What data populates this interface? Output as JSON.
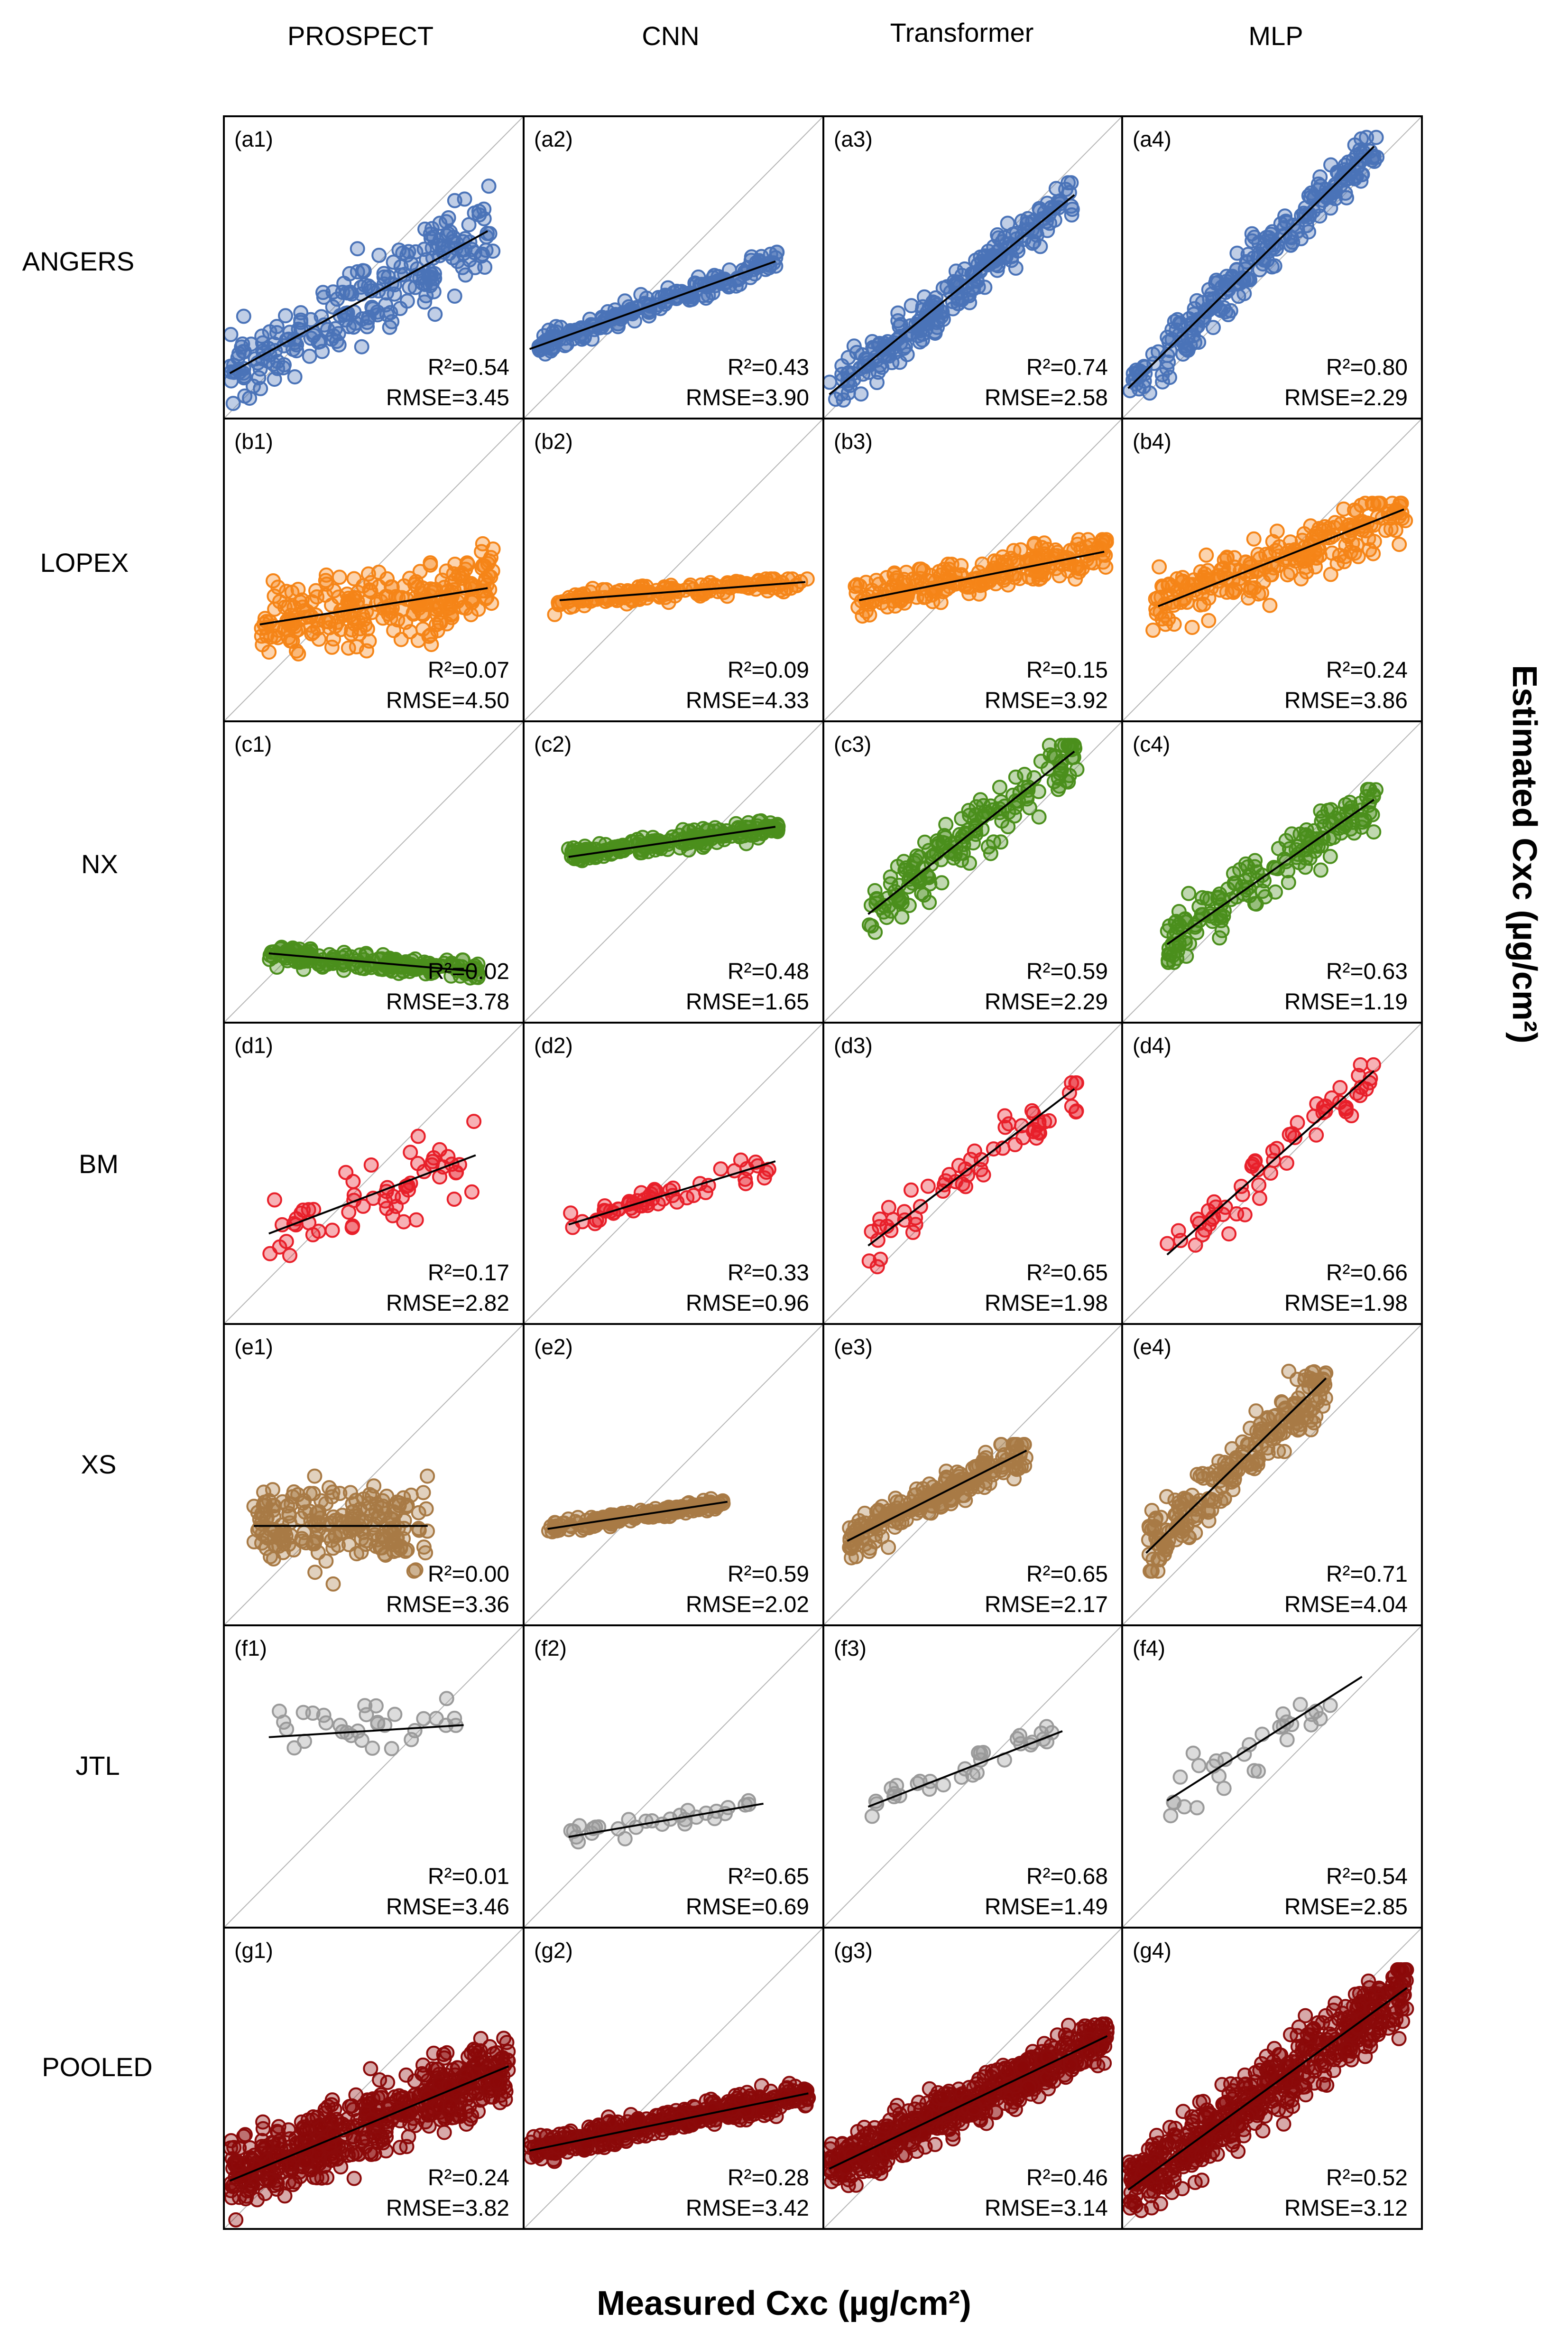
{
  "figure": {
    "models": [
      "PROSPECT",
      "CNN",
      "Transformer",
      "MLP"
    ],
    "datasets": [
      "ANGERS",
      "LOPEX",
      "NX",
      "BM",
      "XS",
      "JTL",
      "POOLED"
    ],
    "xlabel": "Measured Cxc (µg/cm²)",
    "ylabel": "Estimated Cxc (µg/cm²)",
    "metric_r2_label": "R²",
    "metric_rmse_label": "RMSE",
    "dataset_colors": {
      "ANGERS": "#4a73b8",
      "LOPEX": "#f58518",
      "NX": "#4b8f1c",
      "BM": "#e8202a",
      "XS": "#a87a45",
      "JTL": "#9a9a9a",
      "POOLED": "#8b0a0a"
    },
    "line_color": "#000000",
    "identity_line_color": "#b5b5b5"
  },
  "chart_data": {
    "type": "scatter",
    "axis_range": [
      0,
      1
    ],
    "panels": [
      {
        "id": "(a1)",
        "dataset": "ANGERS",
        "model": "PROSPECT",
        "r2": "0.54",
        "rmse": "3.45",
        "fit": [
          0.02,
          0.15,
          0.88,
          0.62
        ],
        "n": 230,
        "xr": [
          0.02,
          0.9
        ],
        "yr": [
          0.05,
          0.88
        ],
        "spread": 0.13,
        "seed": 11
      },
      {
        "id": "(a2)",
        "dataset": "ANGERS",
        "model": "CNN",
        "r2": "0.43",
        "rmse": "3.90",
        "fit": [
          0.02,
          0.23,
          0.84,
          0.52
        ],
        "n": 200,
        "xr": [
          0.05,
          0.85
        ],
        "yr": [
          0.2,
          0.55
        ],
        "spread": 0.035,
        "seed": 12
      },
      {
        "id": "(a3)",
        "dataset": "ANGERS",
        "model": "Transformer",
        "r2": "0.74",
        "rmse": "2.58",
        "fit": [
          0.02,
          0.08,
          0.84,
          0.74
        ],
        "n": 240,
        "xr": [
          0.02,
          0.85
        ],
        "yr": [
          0.05,
          0.78
        ],
        "spread": 0.07,
        "seed": 13
      },
      {
        "id": "(a4)",
        "dataset": "ANGERS",
        "model": "MLP",
        "r2": "0.80",
        "rmse": "2.29",
        "fit": [
          0.02,
          0.1,
          0.84,
          0.9
        ],
        "n": 240,
        "xr": [
          0.02,
          0.85
        ],
        "yr": [
          0.05,
          0.93
        ],
        "spread": 0.08,
        "seed": 14
      },
      {
        "id": "(b1)",
        "dataset": "LOPEX",
        "model": "PROSPECT",
        "r2": "0.07",
        "rmse": "4.50",
        "fit": [
          0.12,
          0.32,
          0.88,
          0.44
        ],
        "n": 260,
        "xr": [
          0.12,
          0.9
        ],
        "yr": [
          0.1,
          0.62
        ],
        "spread": 0.12,
        "seed": 21
      },
      {
        "id": "(b2)",
        "dataset": "LOPEX",
        "model": "CNN",
        "r2": "0.09",
        "rmse": "4.33",
        "fit": [
          0.12,
          0.4,
          0.94,
          0.46
        ],
        "n": 160,
        "xr": [
          0.1,
          0.95
        ],
        "yr": [
          0.2,
          0.47
        ],
        "spread": 0.03,
        "seed": 22
      },
      {
        "id": "(b3)",
        "dataset": "LOPEX",
        "model": "Transformer",
        "r2": "0.15",
        "rmse": "3.92",
        "fit": [
          0.12,
          0.4,
          0.94,
          0.56
        ],
        "n": 230,
        "xr": [
          0.1,
          0.95
        ],
        "yr": [
          0.25,
          0.6
        ],
        "spread": 0.06,
        "seed": 23
      },
      {
        "id": "(b4)",
        "dataset": "LOPEX",
        "model": "MLP",
        "r2": "0.24",
        "rmse": "3.86",
        "fit": [
          0.12,
          0.38,
          0.94,
          0.7
        ],
        "n": 240,
        "xr": [
          0.1,
          0.95
        ],
        "yr": [
          0.22,
          0.72
        ],
        "spread": 0.1,
        "seed": 24
      },
      {
        "id": "(c1)",
        "dataset": "NX",
        "model": "PROSPECT",
        "r2": "0.02",
        "rmse": "3.78",
        "fit": [
          0.15,
          0.23,
          0.84,
          0.17
        ],
        "n": 190,
        "xr": [
          0.15,
          0.85
        ],
        "yr": [
          0.1,
          0.25
        ],
        "spread": 0.03,
        "seed": 31
      },
      {
        "id": "(c2)",
        "dataset": "NX",
        "model": "CNN",
        "r2": "0.48",
        "rmse": "1.65",
        "fit": [
          0.15,
          0.55,
          0.84,
          0.65
        ],
        "n": 190,
        "xr": [
          0.15,
          0.85
        ],
        "yr": [
          0.5,
          0.7
        ],
        "spread": 0.03,
        "seed": 32
      },
      {
        "id": "(c3)",
        "dataset": "NX",
        "model": "Transformer",
        "r2": "0.59",
        "rmse": "2.29",
        "fit": [
          0.15,
          0.36,
          0.84,
          0.9
        ],
        "n": 170,
        "xr": [
          0.15,
          0.85
        ],
        "yr": [
          0.3,
          0.92
        ],
        "spread": 0.1,
        "seed": 33
      },
      {
        "id": "(c4)",
        "dataset": "NX",
        "model": "MLP",
        "r2": "0.63",
        "rmse": "1.19",
        "fit": [
          0.15,
          0.26,
          0.84,
          0.74
        ],
        "n": 170,
        "xr": [
          0.15,
          0.85
        ],
        "yr": [
          0.2,
          0.78
        ],
        "spread": 0.09,
        "seed": 34
      },
      {
        "id": "(d1)",
        "dataset": "BM",
        "model": "PROSPECT",
        "r2": "0.17",
        "rmse": "2.82",
        "fit": [
          0.15,
          0.3,
          0.84,
          0.56
        ],
        "n": 60,
        "xr": [
          0.15,
          0.85
        ],
        "yr": [
          0.1,
          0.9
        ],
        "spread": 0.12,
        "seed": 41
      },
      {
        "id": "(d2)",
        "dataset": "BM",
        "model": "CNN",
        "r2": "0.33",
        "rmse": "0.96",
        "fit": [
          0.15,
          0.33,
          0.84,
          0.54
        ],
        "n": 55,
        "xr": [
          0.15,
          0.82
        ],
        "yr": [
          0.25,
          0.55
        ],
        "spread": 0.04,
        "seed": 42
      },
      {
        "id": "(d3)",
        "dataset": "BM",
        "model": "Transformer",
        "r2": "0.65",
        "rmse": "1.98",
        "fit": [
          0.15,
          0.26,
          0.84,
          0.78
        ],
        "n": 60,
        "xr": [
          0.15,
          0.85
        ],
        "yr": [
          0.1,
          0.8
        ],
        "spread": 0.1,
        "seed": 43
      },
      {
        "id": "(d4)",
        "dataset": "BM",
        "model": "MLP",
        "r2": "0.66",
        "rmse": "1.98",
        "fit": [
          0.15,
          0.23,
          0.84,
          0.84
        ],
        "n": 60,
        "xr": [
          0.15,
          0.85
        ],
        "yr": [
          0.15,
          0.86
        ],
        "spread": 0.09,
        "seed": 44
      },
      {
        "id": "(e1)",
        "dataset": "XS",
        "model": "PROSPECT",
        "r2": "0.00",
        "rmse": "3.36",
        "fit": [
          0.1,
          0.33,
          0.68,
          0.33
        ],
        "n": 210,
        "xr": [
          0.1,
          0.68
        ],
        "yr": [
          0.12,
          0.57
        ],
        "spread": 0.13,
        "seed": 51
      },
      {
        "id": "(e2)",
        "dataset": "XS",
        "model": "CNN",
        "r2": "0.59",
        "rmse": "2.02",
        "fit": [
          0.08,
          0.32,
          0.68,
          0.41
        ],
        "n": 170,
        "xr": [
          0.08,
          0.68
        ],
        "yr": [
          0.3,
          0.43
        ],
        "spread": 0.02,
        "seed": 52
      },
      {
        "id": "(e3)",
        "dataset": "XS",
        "model": "Transformer",
        "r2": "0.65",
        "rmse": "2.17",
        "fit": [
          0.08,
          0.28,
          0.68,
          0.58
        ],
        "n": 220,
        "xr": [
          0.08,
          0.68
        ],
        "yr": [
          0.18,
          0.6
        ],
        "spread": 0.06,
        "seed": 53
      },
      {
        "id": "(e4)",
        "dataset": "XS",
        "model": "MLP",
        "r2": "0.71",
        "rmse": "4.04",
        "fit": [
          0.08,
          0.24,
          0.68,
          0.82
        ],
        "n": 230,
        "xr": [
          0.08,
          0.68
        ],
        "yr": [
          0.18,
          0.86
        ],
        "spread": 0.1,
        "seed": 54
      },
      {
        "id": "(f1)",
        "dataset": "JTL",
        "model": "PROSPECT",
        "r2": "0.01",
        "rmse": "3.46",
        "fit": [
          0.15,
          0.63,
          0.8,
          0.67
        ],
        "n": 32,
        "xr": [
          0.15,
          0.78
        ],
        "yr": [
          0.3,
          0.78
        ],
        "spread": 0.1,
        "seed": 61
      },
      {
        "id": "(f2)",
        "dataset": "JTL",
        "model": "CNN",
        "r2": "0.65",
        "rmse": "0.69",
        "fit": [
          0.15,
          0.3,
          0.8,
          0.41
        ],
        "n": 30,
        "xr": [
          0.15,
          0.78
        ],
        "yr": [
          0.28,
          0.43
        ],
        "spread": 0.03,
        "seed": 62
      },
      {
        "id": "(f3)",
        "dataset": "JTL",
        "model": "Transformer",
        "r2": "0.68",
        "rmse": "1.49",
        "fit": [
          0.15,
          0.4,
          0.8,
          0.65
        ],
        "n": 32,
        "xr": [
          0.15,
          0.78
        ],
        "yr": [
          0.35,
          0.68
        ],
        "spread": 0.05,
        "seed": 63
      },
      {
        "id": "(f4)",
        "dataset": "JTL",
        "model": "MLP",
        "r2": "0.54",
        "rmse": "2.85",
        "fit": [
          0.15,
          0.42,
          0.8,
          0.83
        ],
        "n": 30,
        "xr": [
          0.15,
          0.78
        ],
        "yr": [
          0.3,
          0.86
        ],
        "spread": 0.09,
        "seed": 64
      },
      {
        "id": "(g1)",
        "dataset": "POOLED",
        "model": "PROSPECT",
        "r2": "0.24",
        "rmse": "3.82",
        "fit": [
          0.02,
          0.16,
          0.95,
          0.54
        ],
        "n": 560,
        "xr": [
          0.02,
          0.95
        ],
        "yr": [
          0.03,
          0.7
        ],
        "spread": 0.12,
        "seed": 71
      },
      {
        "id": "(g2)",
        "dataset": "POOLED",
        "model": "CNN",
        "r2": "0.28",
        "rmse": "3.42",
        "fit": [
          0.02,
          0.26,
          0.95,
          0.45
        ],
        "n": 420,
        "xr": [
          0.02,
          0.95
        ],
        "yr": [
          0.22,
          0.49
        ],
        "spread": 0.04,
        "seed": 72
      },
      {
        "id": "(g3)",
        "dataset": "POOLED",
        "model": "Transformer",
        "r2": "0.46",
        "rmse": "3.14",
        "fit": [
          0.02,
          0.2,
          0.95,
          0.64
        ],
        "n": 560,
        "xr": [
          0.02,
          0.95
        ],
        "yr": [
          0.05,
          0.68
        ],
        "spread": 0.08,
        "seed": 73
      },
      {
        "id": "(g4)",
        "dataset": "POOLED",
        "model": "MLP",
        "r2": "0.52",
        "rmse": "3.12",
        "fit": [
          0.02,
          0.13,
          0.95,
          0.8
        ],
        "n": 560,
        "xr": [
          0.02,
          0.95
        ],
        "yr": [
          0.03,
          0.86
        ],
        "spread": 0.11,
        "seed": 74
      }
    ]
  }
}
